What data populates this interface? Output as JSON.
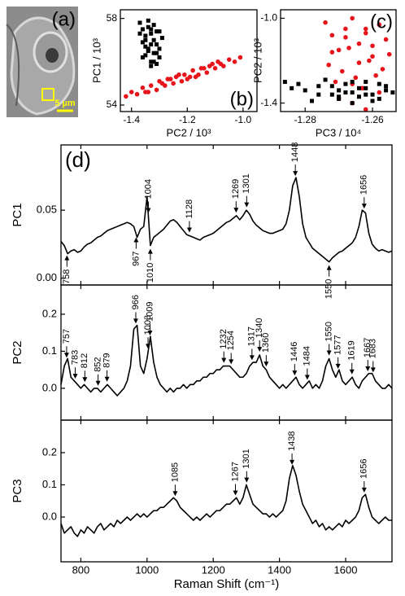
{
  "image_panel": {
    "label": "(a)",
    "scale_bar": "5 µm"
  },
  "chart_data": [
    {
      "type": "scatter",
      "panel_label": "(b)",
      "xlabel": "PC2 / 10³",
      "ylabel": "PC1 / 10³",
      "xlim": [
        -1.44,
        -0.95
      ],
      "ylim": [
        53.7,
        58.4
      ],
      "xticks": [
        -1.4,
        -1.2,
        {
          "value": -1,
          "label": "-1.0"
        }
      ],
      "yticks": [
        54,
        58
      ],
      "series": [
        {
          "color": "#e8141b",
          "marker": "circle",
          "x": [
            -1.42,
            -1.4,
            -1.38,
            -1.36,
            -1.35,
            -1.33,
            -1.31,
            -1.3,
            -1.28,
            -1.27,
            -1.25,
            -1.24,
            -1.22,
            -1.21,
            -1.19,
            -1.18,
            -1.16,
            -1.15,
            -1.13,
            -1.12,
            -1.1,
            -1.09,
            -1.07,
            -1.05,
            -1.03,
            -1.01,
            -1.34,
            -1.29,
            -1.23,
            -1.17,
            -1.11,
            -1.26,
            -1.2,
            -1.14,
            -1.08
          ],
          "y": [
            54.4,
            54.6,
            54.5,
            54.8,
            54.6,
            54.9,
            54.7,
            55.1,
            54.9,
            55.2,
            55.0,
            55.3,
            55.1,
            55.4,
            55.3,
            55.6,
            55.4,
            55.7,
            55.5,
            55.8,
            55.7,
            56.0,
            55.8,
            56.1,
            56.0,
            56.2,
            54.6,
            55.0,
            55.4,
            55.3,
            55.9,
            55.2,
            55.2,
            55.7,
            55.9
          ]
        },
        {
          "color": "#000000",
          "marker": "square",
          "x": [
            -1.37,
            -1.36,
            -1.35,
            -1.34,
            -1.33,
            -1.32,
            -1.31,
            -1.3,
            -1.29,
            -1.36,
            -1.34,
            -1.32,
            -1.3,
            -1.35,
            -1.33,
            -1.31,
            -1.37,
            -1.34,
            -1.32,
            -1.3,
            -1.33,
            -1.35,
            -1.31,
            -1.36,
            -1.33,
            -1.34,
            -1.32,
            -1.35,
            -1.31,
            -1.33
          ],
          "y": [
            57.8,
            57.5,
            57.2,
            57.6,
            57.3,
            57.0,
            56.8,
            56.6,
            57.1,
            56.9,
            56.6,
            56.4,
            56.2,
            56.3,
            56.0,
            55.9,
            57.3,
            57.9,
            57.7,
            57.4,
            56.8,
            56.7,
            57.4,
            56.2,
            55.8,
            56.5,
            56.0,
            57.0,
            56.4,
            57.5
          ]
        }
      ]
    },
    {
      "type": "scatter",
      "panel_label": "(c)",
      "xlabel": "PC3 / 10⁴",
      "ylabel": "PC2 / 10³",
      "xlim": [
        -1.2873,
        -1.253
      ],
      "ylim": [
        -1.44,
        -0.96
      ],
      "xticks": [
        -1.28,
        -1.26
      ],
      "yticks": [
        {
          "value": -1,
          "label": "-1.0"
        },
        -1.4
      ],
      "series": [
        {
          "color": "#e8141b",
          "marker": "circle",
          "x": [
            -1.274,
            -1.272,
            -1.27,
            -1.268,
            -1.266,
            -1.264,
            -1.262,
            -1.26,
            -1.258,
            -1.256,
            -1.273,
            -1.269,
            -1.265,
            -1.261,
            -1.257,
            -1.271,
            -1.267,
            -1.263,
            -1.259,
            -1.255,
            -1.27,
            -1.266,
            -1.262,
            -1.258,
            -1.268,
            -1.264,
            -1.26,
            -1.272,
            -1.266,
            -1.262
          ],
          "y": [
            -1.02,
            -1.08,
            -1.15,
            -1.05,
            -1.0,
            -1.12,
            -1.07,
            -1.18,
            -1.03,
            -1.1,
            -1.22,
            -1.25,
            -1.28,
            -1.2,
            -1.24,
            -1.3,
            -1.14,
            -1.33,
            -1.27,
            -1.17,
            -1.38,
            -1.4,
            -1.43,
            -1.35,
            -1.09,
            -1.21,
            -1.13,
            -1.16,
            -1.31,
            -1.05
          ]
        },
        {
          "color": "#000000",
          "marker": "square",
          "x": [
            -1.286,
            -1.284,
            -1.282,
            -1.28,
            -1.276,
            -1.272,
            -1.27,
            -1.268,
            -1.266,
            -1.264,
            -1.262,
            -1.26,
            -1.258,
            -1.256,
            -1.254,
            -1.278,
            -1.274,
            -1.27,
            -1.266,
            -1.262,
            -1.258,
            -1.272,
            -1.268,
            -1.264,
            -1.26,
            -1.276,
            -1.266,
            -1.256,
            -1.27,
            -1.262
          ],
          "y": [
            -1.3,
            -1.33,
            -1.31,
            -1.34,
            -1.36,
            -1.32,
            -1.38,
            -1.35,
            -1.3,
            -1.37,
            -1.33,
            -1.36,
            -1.31,
            -1.34,
            -1.35,
            -1.39,
            -1.29,
            -1.34,
            -1.4,
            -1.3,
            -1.38,
            -1.36,
            -1.31,
            -1.33,
            -1.39,
            -1.32,
            -1.35,
            -1.32,
            -1.37,
            -1.36
          ]
        }
      ]
    },
    {
      "type": "line",
      "panel_label": "(d)",
      "xlabel": "Raman Shift (cm⁻¹)",
      "xlim": [
        740,
        1740
      ],
      "xticks": [
        800,
        1000,
        1200,
        1400,
        1600
      ],
      "x": [
        740,
        750,
        760,
        770,
        780,
        790,
        800,
        810,
        820,
        830,
        840,
        850,
        860,
        870,
        880,
        890,
        900,
        910,
        920,
        930,
        940,
        950,
        960,
        970,
        980,
        990,
        1000,
        1010,
        1020,
        1030,
        1040,
        1050,
        1060,
        1070,
        1080,
        1090,
        1100,
        1110,
        1120,
        1130,
        1140,
        1150,
        1160,
        1170,
        1180,
        1190,
        1200,
        1210,
        1220,
        1230,
        1240,
        1250,
        1260,
        1270,
        1280,
        1290,
        1300,
        1310,
        1320,
        1330,
        1340,
        1350,
        1360,
        1370,
        1380,
        1390,
        1400,
        1410,
        1420,
        1430,
        1440,
        1450,
        1460,
        1470,
        1480,
        1490,
        1500,
        1510,
        1520,
        1530,
        1540,
        1550,
        1560,
        1570,
        1580,
        1590,
        1600,
        1610,
        1620,
        1630,
        1640,
        1650,
        1660,
        1670,
        1680,
        1690,
        1700,
        1710,
        1720,
        1730,
        1740
      ],
      "series": [
        {
          "name": "PC1",
          "color": "#000000",
          "ylim": [
            -0.005,
            0.098
          ],
          "yticks": [
            {
              "value": 0,
              "label": "0.00"
            },
            0.05
          ],
          "values": [
            0.027,
            0.024,
            0.018,
            0.02,
            0.021,
            0.019,
            0.02,
            0.023,
            0.025,
            0.026,
            0.028,
            0.03,
            0.031,
            0.033,
            0.035,
            0.036,
            0.037,
            0.038,
            0.039,
            0.04,
            0.041,
            0.04,
            0.038,
            0.03,
            0.036,
            0.038,
            0.06,
            0.024,
            0.03,
            0.032,
            0.034,
            0.036,
            0.039,
            0.042,
            0.043,
            0.041,
            0.038,
            0.035,
            0.032,
            0.031,
            0.03,
            0.029,
            0.028,
            0.03,
            0.031,
            0.032,
            0.033,
            0.035,
            0.037,
            0.039,
            0.041,
            0.042,
            0.044,
            0.046,
            0.043,
            0.046,
            0.05,
            0.047,
            0.042,
            0.039,
            0.037,
            0.035,
            0.034,
            0.033,
            0.033,
            0.034,
            0.035,
            0.036,
            0.04,
            0.05,
            0.068,
            0.074,
            0.06,
            0.04,
            0.03,
            0.026,
            0.022,
            0.02,
            0.018,
            0.016,
            0.014,
            0.012,
            0.015,
            0.017,
            0.019,
            0.02,
            0.022,
            0.024,
            0.026,
            0.03,
            0.038,
            0.05,
            0.048,
            0.033,
            0.025,
            0.022,
            0.02,
            0.021,
            0.02,
            0.019,
            0.02
          ],
          "annotations": [
            {
              "x": 758,
              "label": "758",
              "position": "below"
            },
            {
              "x": 967,
              "label": "967",
              "position": "below"
            },
            {
              "x": 1004,
              "label": "1004",
              "position": "above"
            },
            {
              "x": 1010,
              "label": "1010",
              "position": "below"
            },
            {
              "x": 1128,
              "label": "1128",
              "position": "above"
            },
            {
              "x": 1269,
              "label": "1269",
              "position": "above"
            },
            {
              "x": 1301,
              "label": "1301",
              "position": "above"
            },
            {
              "x": 1448,
              "label": "1448",
              "position": "above"
            },
            {
              "x": 1550,
              "label": "1550",
              "position": "below"
            },
            {
              "x": 1656,
              "label": "1656",
              "position": "above"
            }
          ]
        },
        {
          "name": "PC2",
          "color": "#000000",
          "ylim": [
            -0.086,
            0.279
          ],
          "yticks": [
            {
              "value": 0,
              "label": "0.0"
            },
            0.1,
            0.2
          ],
          "values": [
            0.01,
            0.06,
            0.08,
            0.03,
            0.02,
            0.01,
            0,
            0.01,
            0,
            -0.01,
            0,
            0,
            -0.01,
            0,
            0.01,
            0,
            -0.01,
            -0.02,
            -0.01,
            0,
            0.02,
            0.06,
            0.16,
            0.17,
            0.06,
            0.04,
            0.08,
            0.14,
            0.07,
            0.03,
            0.01,
            0,
            -0.01,
            0,
            -0.01,
            0,
            0,
            0.01,
            0,
            0.01,
            0.01,
            0.02,
            0.02,
            0.03,
            0.03,
            0.04,
            0.04,
            0.05,
            0.05,
            0.06,
            0.06,
            0.06,
            0.05,
            0.04,
            0.03,
            0.03,
            0.04,
            0.06,
            0.07,
            0.07,
            0.09,
            0.06,
            0.05,
            0.03,
            0.02,
            0.01,
            0,
            0.01,
            0,
            0.01,
            0.02,
            0.03,
            0.01,
            0,
            0.01,
            0.02,
            0,
            0.01,
            0,
            0.02,
            0.06,
            0.08,
            0.05,
            0.03,
            0.05,
            0.02,
            0.01,
            0.02,
            0.03,
            0.01,
            0,
            0.02,
            0.03,
            0.04,
            0.04,
            0.02,
            0.01,
            0,
            0,
            0.01,
            0
          ],
          "annotations": [
            {
              "x": 757,
              "label": "757",
              "position": "above"
            },
            {
              "x": 783,
              "label": "783",
              "position": "above"
            },
            {
              "x": 812,
              "label": "812",
              "position": "above"
            },
            {
              "x": 852,
              "label": "852",
              "position": "above"
            },
            {
              "x": 879,
              "label": "879",
              "position": "above"
            },
            {
              "x": 966,
              "label": "966",
              "position": "above"
            },
            {
              "x": 1003,
              "label": "1003",
              "position": "above"
            },
            {
              "x": 1009,
              "label": "1009",
              "position": "above"
            },
            {
              "x": 1232,
              "label": "1232",
              "position": "above"
            },
            {
              "x": 1254,
              "label": "1254",
              "position": "above"
            },
            {
              "x": 1317,
              "label": "1317",
              "position": "above"
            },
            {
              "x": 1340,
              "label": "1340",
              "position": "above"
            },
            {
              "x": 1360,
              "label": "1360",
              "position": "above"
            },
            {
              "x": 1446,
              "label": "1446",
              "position": "above"
            },
            {
              "x": 1484,
              "label": "1484",
              "position": "above"
            },
            {
              "x": 1550,
              "label": "1550",
              "position": "above"
            },
            {
              "x": 1577,
              "label": "1577",
              "position": "above"
            },
            {
              "x": 1619,
              "label": "1619",
              "position": "above"
            },
            {
              "x": 1667,
              "label": "1667",
              "position": "above"
            },
            {
              "x": 1683,
              "label": "1683",
              "position": "above"
            }
          ]
        },
        {
          "name": "PC3",
          "color": "#000000",
          "ylim": [
            -0.139,
            0.301
          ],
          "yticks": [
            {
              "value": 0,
              "label": "0.0"
            },
            0.1,
            0.2
          ],
          "values": [
            -0.02,
            -0.05,
            -0.04,
            -0.03,
            -0.05,
            -0.06,
            -0.04,
            -0.05,
            -0.03,
            -0.04,
            -0.05,
            -0.03,
            -0.02,
            -0.04,
            -0.03,
            -0.02,
            -0.03,
            -0.01,
            -0.02,
            -0.01,
            0,
            -0.01,
            0,
            0.01,
            0,
            0.01,
            0,
            0.01,
            0.02,
            0.02,
            0.03,
            0.03,
            0.04,
            0.05,
            0.06,
            0.05,
            0.03,
            0.02,
            0.01,
            0,
            -0.01,
            0,
            -0.01,
            0,
            0.01,
            0,
            0.01,
            0.02,
            0.02,
            0.03,
            0.04,
            0.04,
            0.05,
            0.06,
            0.04,
            0.06,
            0.1,
            0.07,
            0.04,
            0.03,
            0.02,
            0.01,
            0.01,
            0,
            0.01,
            0,
            0.01,
            0.02,
            0.05,
            0.12,
            0.16,
            0.13,
            0.08,
            0.04,
            0.02,
            0,
            -0.02,
            -0.01,
            -0.03,
            -0.02,
            -0.04,
            -0.03,
            -0.04,
            -0.03,
            -0.02,
            -0.03,
            -0.01,
            -0.02,
            -0.01,
            0,
            0.02,
            0.06,
            0.07,
            0.03,
            0,
            -0.01,
            -0.02,
            -0.01,
            0,
            -0.01,
            -0.01
          ],
          "annotations": [
            {
              "x": 1085,
              "label": "1085",
              "position": "above"
            },
            {
              "x": 1267,
              "label": "1267",
              "position": "above"
            },
            {
              "x": 1301,
              "label": "1301",
              "position": "above"
            },
            {
              "x": 1438,
              "label": "1438",
              "position": "above"
            },
            {
              "x": 1656,
              "label": "1656",
              "position": "above"
            }
          ]
        }
      ]
    }
  ]
}
